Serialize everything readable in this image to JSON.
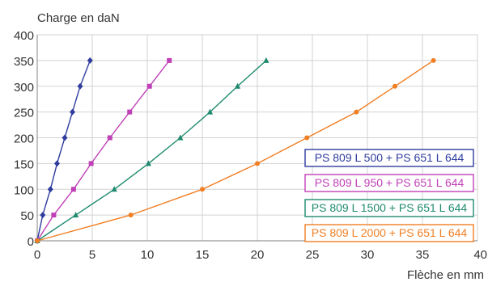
{
  "chart_data": {
    "type": "line",
    "ylabel": "Charge en daN",
    "xlabel": "Flèche en mm",
    "xlim": [
      0,
      40
    ],
    "ylim": [
      0,
      400
    ],
    "xticks": [
      "0",
      "5",
      "10",
      "15",
      "20",
      "25",
      "30",
      "35",
      "40"
    ],
    "yticks": [
      "0",
      "50",
      "100",
      "150",
      "200",
      "250",
      "300",
      "350",
      "400"
    ],
    "grid": true,
    "legend_position": "bottom-right",
    "series": [
      {
        "name": "PS 809 L 500 + PS 651 L 644",
        "color": "#2f3c9e",
        "marker": "diamond",
        "points": [
          [
            0,
            0
          ],
          [
            0.5,
            50
          ],
          [
            1.2,
            100
          ],
          [
            1.8,
            150
          ],
          [
            2.5,
            200
          ],
          [
            3.2,
            250
          ],
          [
            3.9,
            300
          ],
          [
            4.8,
            350
          ]
        ]
      },
      {
        "name": "PS 809 L 950 + PS 651 L 644",
        "color": "#c040b8",
        "marker": "square",
        "points": [
          [
            0,
            0
          ],
          [
            1.5,
            50
          ],
          [
            3.3,
            100
          ],
          [
            4.9,
            150
          ],
          [
            6.6,
            200
          ],
          [
            8.4,
            250
          ],
          [
            10.2,
            300
          ],
          [
            12.0,
            350
          ]
        ]
      },
      {
        "name": "PS 809 L 1500 + PS 651 L 644",
        "color": "#1e8a6e",
        "marker": "triangle",
        "points": [
          [
            0,
            0
          ],
          [
            3.5,
            50
          ],
          [
            7.0,
            100
          ],
          [
            10.1,
            150
          ],
          [
            13.0,
            200
          ],
          [
            15.7,
            250
          ],
          [
            18.2,
            300
          ],
          [
            20.8,
            350
          ]
        ]
      },
      {
        "name": "PS 809 L 2000 + PS 651 L 644",
        "color": "#f07e23",
        "marker": "circle",
        "points": [
          [
            0,
            0
          ],
          [
            8.5,
            50
          ],
          [
            15.0,
            100
          ],
          [
            20.0,
            150
          ],
          [
            24.5,
            200
          ],
          [
            29.0,
            250
          ],
          [
            32.5,
            300
          ],
          [
            36.0,
            350
          ]
        ]
      }
    ]
  }
}
